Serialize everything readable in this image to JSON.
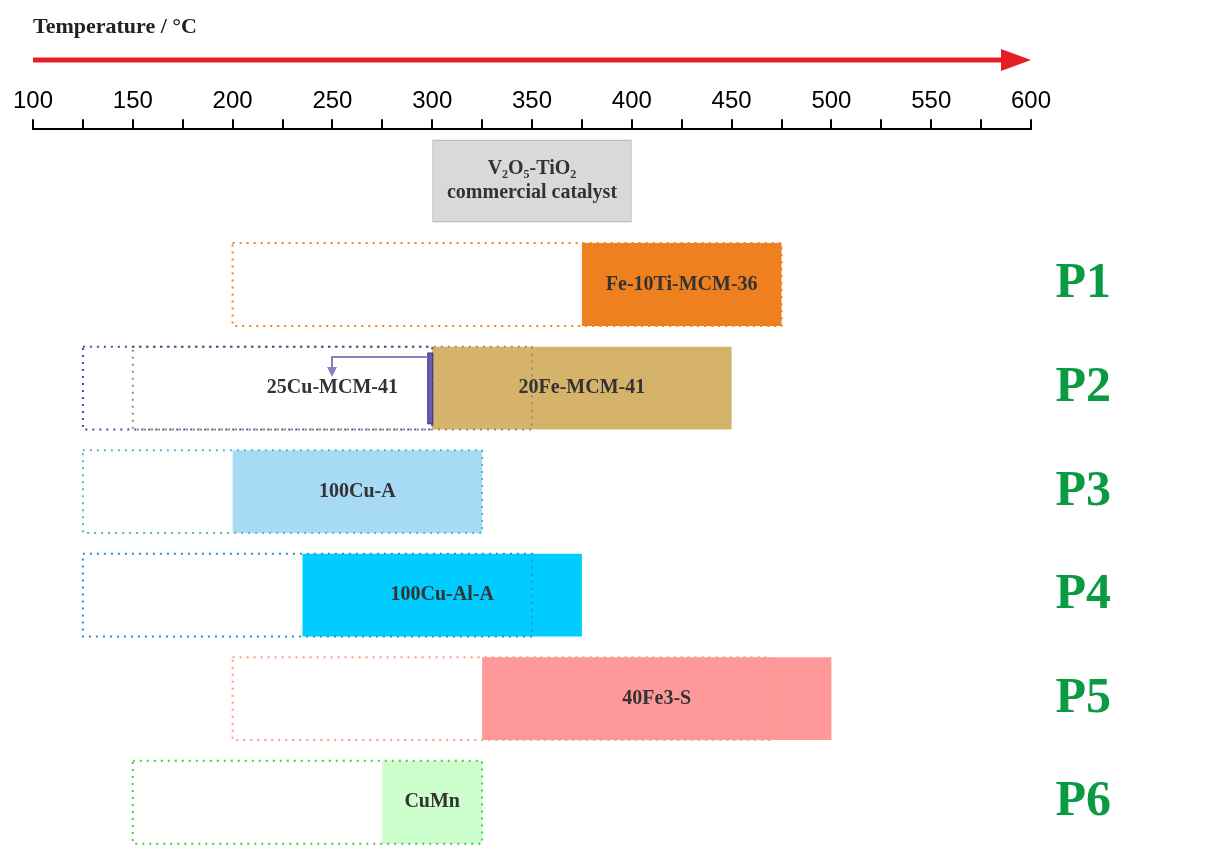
{
  "chart_data": {
    "type": "bar",
    "orientation": "horizontal",
    "xlabel": "Temperature / °C",
    "categories": [
      null,
      "P1",
      "P2",
      "P3",
      "P4",
      "P5",
      "P6"
    ],
    "xlim": [
      100,
      600
    ],
    "xticks": [
      100,
      {
        "value": 125,
        "label": null
      },
      150,
      {
        "value": 175,
        "label": null
      },
      200,
      {
        "value": 225,
        "label": null
      },
      250,
      {
        "value": 275,
        "label": null
      },
      300,
      {
        "value": 325,
        "label": null
      },
      350,
      {
        "value": 375,
        "label": null
      },
      400,
      {
        "value": 425,
        "label": null
      },
      450,
      {
        "value": 475,
        "label": null
      },
      500,
      {
        "value": 525,
        "label": null
      },
      550,
      {
        "value": 575,
        "label": null
      },
      600
    ],
    "series": [
      {
        "line_style": "dotted",
        "colors": [
          null,
          "#ef8020",
          "#a08c6c",
          "#5ab4c8",
          "#2a8fd0",
          "#f5a080",
          "#44cc44"
        ],
        "base": [
          null,
          200,
          150,
          125,
          125,
          200,
          150
        ],
        "values": [
          null,
          275,
          200,
          200,
          225,
          270,
          175
        ]
      },
      {
        "line_style": "dotted",
        "colors": [
          null,
          null,
          "#4a4aa8",
          null,
          null,
          null,
          null
        ],
        "base": [
          null,
          null,
          125,
          null,
          null,
          null,
          null
        ],
        "values": [
          null,
          null,
          175,
          null,
          null,
          null,
          null
        ]
      },
      {
        "line_style": "solid",
        "colors": [
          "#d9d9d9",
          "#ef8020",
          "#d6b36b",
          "#a6daf5",
          "#00ccff",
          "#ff9999",
          "#ccffcc"
        ],
        "base": [
          300,
          375,
          300,
          200,
          235,
          325,
          275
        ],
        "values": [
          100,
          100,
          150,
          125,
          140,
          175,
          50
        ]
      }
    ],
    "annotations": [
      "V₂O₅-TiO₂\ncommercial catalyst",
      "Fe-10Ti-MCM-36",
      {
        "text": "25Cu-MCM-41",
        "x": 300,
        "y": "P2"
      },
      "20Fe-MCM-41",
      "100Cu-A",
      "100Cu-Al-A",
      "40Fe3-S",
      "CuMn"
    ]
  }
}
